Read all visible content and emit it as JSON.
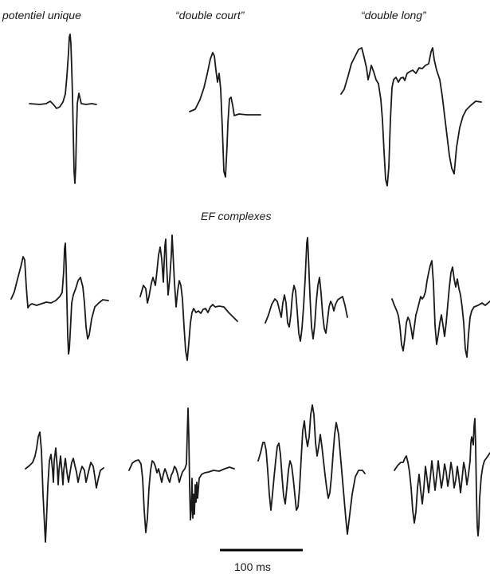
{
  "labels": {
    "single": "potentiel unique",
    "double_short": "“double court”",
    "double_long": "“double long”",
    "complexes": "EF complexes"
  },
  "scale_bar": {
    "label": "100 ms"
  },
  "colors": {
    "trace": "#1a1a1a",
    "background": "#ffffff"
  }
}
